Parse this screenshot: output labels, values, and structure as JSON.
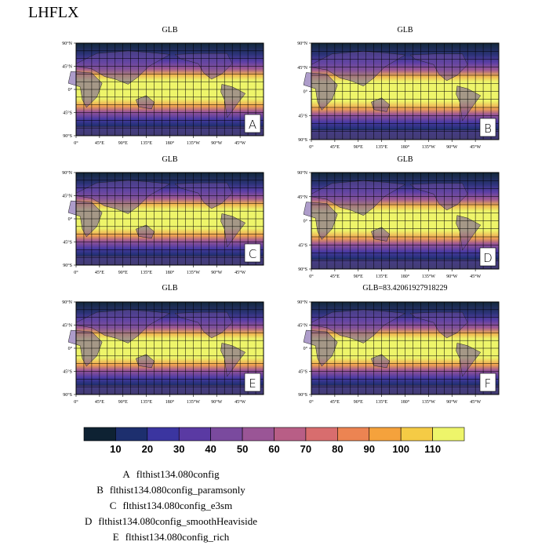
{
  "title": "LHFLX",
  "panels": [
    {
      "title": "GLB",
      "letter": "A"
    },
    {
      "title": "GLB",
      "letter": "B"
    },
    {
      "title": "GLB",
      "letter": "C"
    },
    {
      "title": "GLB",
      "letter": "D"
    },
    {
      "title": "GLB",
      "letter": "E"
    },
    {
      "title": "GLB=83.42061927918229",
      "letter": "F"
    }
  ],
  "lat_labels": [
    "90°N",
    "45°N",
    "0°",
    "45°S",
    "90°S"
  ],
  "lon_labels": [
    "0°",
    "45°E",
    "90°E",
    "135°E",
    "180°",
    "135°W",
    "90°W",
    "45°W"
  ],
  "colorbar": {
    "colors": [
      "#0e2233",
      "#1d2f6e",
      "#3b35a0",
      "#5a3aa3",
      "#7a4a9e",
      "#9a5596",
      "#b85e86",
      "#d86d6e",
      "#ec8452",
      "#f5a23c",
      "#f5cb45",
      "#eef56a"
    ],
    "ticks": [
      10,
      20,
      30,
      40,
      50,
      60,
      70,
      80,
      90,
      100,
      110
    ]
  },
  "legend": [
    {
      "letter": "A",
      "name": "flthist134.080config"
    },
    {
      "letter": "B",
      "name": "flthist134.080config_paramsonly"
    },
    {
      "letter": "C",
      "name": "flthist134.080config_e3sm"
    },
    {
      "letter": "D",
      "name": "flthist134.080config_smoothHeaviside"
    },
    {
      "letter": "E",
      "name": "flthist134.080config_rich"
    }
  ]
}
